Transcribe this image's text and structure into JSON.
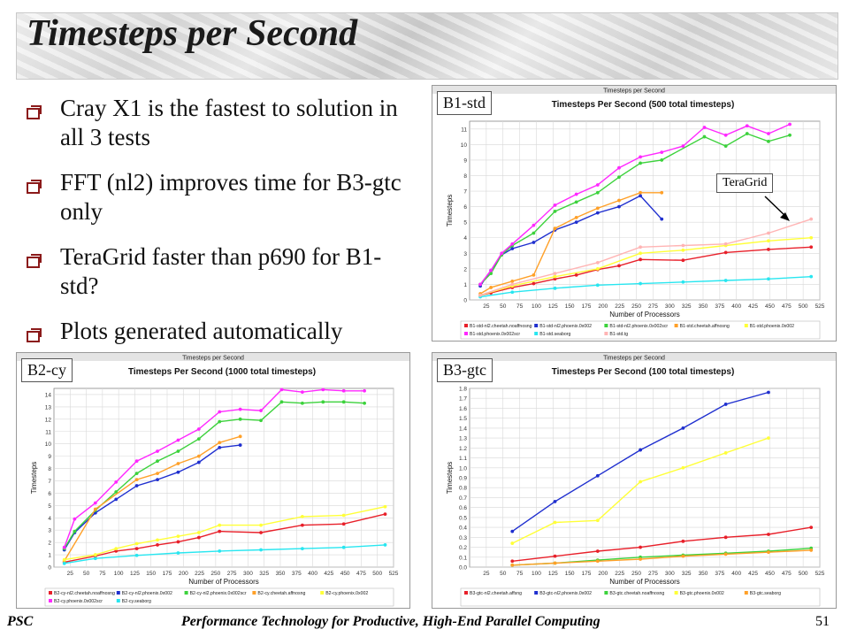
{
  "slide": {
    "title": "Timesteps per Second",
    "bullets": [
      "Cray X1 is the fastest to solution in all 3 tests",
      "FFT (nl2) improves time for B3-gtc only",
      "TeraGrid faster than p690  for B1-std?",
      "Plots generated automatically"
    ],
    "footer_left": "PSC",
    "footer_center": "Performance Technology for Productive, High-End Parallel Computing",
    "footer_right": "51",
    "annotation": "TeraGrid"
  },
  "chart_data": [
    {
      "tag": "B1-std",
      "type": "line",
      "window_title": "Timesteps per Second",
      "title": "Timesteps Per Second (500 total timesteps)",
      "xlabel": "Number of Processors",
      "ylabel": "Timesteps",
      "xlim": [
        0,
        525
      ],
      "ylim": [
        0,
        11.5
      ],
      "xticks": [
        25,
        50,
        75,
        100,
        125,
        150,
        175,
        200,
        225,
        250,
        275,
        300,
        325,
        350,
        375,
        400,
        425,
        450,
        475,
        500,
        525
      ],
      "yticks": [
        0,
        1,
        2,
        3,
        4,
        5,
        6,
        7,
        8,
        9,
        10,
        11
      ],
      "grid": true,
      "legend": "bottom",
      "series": [
        {
          "name": "B1-std-nl2.cheetah.noaffnosng",
          "color": "#e8202a",
          "x": [
            16,
            32,
            64,
            96,
            128,
            160,
            192,
            224,
            256,
            320,
            384,
            448,
            512
          ],
          "y": [
            0.3,
            0.45,
            0.8,
            1.05,
            1.35,
            1.6,
            1.95,
            2.2,
            2.6,
            2.55,
            3.05,
            3.25,
            3.4
          ]
        },
        {
          "name": "B1-std-nl2.phoenix.0x002",
          "color": "#1f2fcf",
          "x": [
            16,
            32,
            48,
            64,
            96,
            128,
            160,
            192,
            224,
            256,
            288
          ],
          "y": [
            0.9,
            1.9,
            2.9,
            3.3,
            3.7,
            4.5,
            5.0,
            5.6,
            6.0,
            6.7,
            5.2
          ]
        },
        {
          "name": "B1-std-nl2.phoenix.0x002scr",
          "color": "#3cd23c",
          "x": [
            16,
            32,
            48,
            64,
            96,
            128,
            160,
            192,
            224,
            256,
            288,
            352,
            384,
            416,
            448,
            480
          ],
          "y": [
            1.0,
            1.7,
            2.9,
            3.5,
            4.3,
            5.7,
            6.3,
            6.9,
            7.9,
            8.8,
            9.0,
            10.5,
            9.9,
            10.7,
            10.2,
            10.6
          ]
        },
        {
          "name": "B1-std.cheetah.affnosng",
          "color": "#ffa028",
          "x": [
            16,
            32,
            64,
            96,
            128,
            160,
            192,
            224,
            256,
            288
          ],
          "y": [
            0.4,
            0.8,
            1.2,
            1.6,
            4.6,
            5.3,
            5.9,
            6.4,
            6.9,
            6.9
          ]
        },
        {
          "name": "B1-std.phoenix.0x002",
          "color": "#ffff38",
          "x": [
            16,
            64,
            128,
            192,
            256,
            320,
            384,
            448,
            512
          ],
          "y": [
            0.3,
            0.9,
            1.5,
            2.0,
            3.0,
            3.2,
            3.5,
            3.8,
            4.0
          ]
        },
        {
          "name": "B1-std.phoenix.0x002scr",
          "color": "#ff28ff",
          "x": [
            16,
            32,
            48,
            64,
            96,
            128,
            160,
            192,
            224,
            256,
            288,
            320,
            352,
            384,
            416,
            448,
            480
          ],
          "y": [
            1.0,
            1.9,
            3.0,
            3.6,
            4.8,
            6.1,
            6.8,
            7.4,
            8.5,
            9.2,
            9.5,
            9.9,
            11.1,
            10.6,
            11.2,
            10.7,
            11.3
          ]
        },
        {
          "name": "B1-std.seaborg",
          "color": "#28e6f0",
          "x": [
            16,
            64,
            128,
            192,
            256,
            320,
            384,
            448,
            512
          ],
          "y": [
            0.2,
            0.5,
            0.75,
            0.95,
            1.05,
            1.15,
            1.25,
            1.35,
            1.5
          ]
        },
        {
          "name": "B1-std.tg",
          "color": "#ffb4b4",
          "x": [
            16,
            64,
            128,
            192,
            256,
            320,
            384,
            448,
            512
          ],
          "y": [
            0.3,
            1.0,
            1.7,
            2.4,
            3.4,
            3.5,
            3.6,
            4.3,
            5.2
          ]
        }
      ]
    },
    {
      "tag": "B2-cy",
      "type": "line",
      "window_title": "Timesteps per Second",
      "title": "Timesteps Per Second (1000 total timesteps)",
      "xlabel": "Number of Processors",
      "ylabel": "Timesteps",
      "xlim": [
        0,
        525
      ],
      "ylim": [
        0,
        14.5
      ],
      "xticks": [
        25,
        50,
        75,
        100,
        125,
        150,
        175,
        200,
        225,
        250,
        275,
        300,
        325,
        350,
        375,
        400,
        425,
        450,
        475,
        500,
        525
      ],
      "yticks": [
        0,
        1,
        2,
        3,
        4,
        5,
        6,
        7,
        8,
        9,
        10,
        11,
        12,
        13,
        14
      ],
      "grid": true,
      "legend": "bottom",
      "series": [
        {
          "name": "B2-cy-nl2.cheetah.noaffnosng",
          "color": "#e8202a",
          "x": [
            16,
            64,
            96,
            128,
            160,
            192,
            224,
            256,
            320,
            384,
            448,
            512
          ],
          "y": [
            0.4,
            0.9,
            1.3,
            1.5,
            1.8,
            2.05,
            2.4,
            2.9,
            2.8,
            3.4,
            3.5,
            4.3
          ]
        },
        {
          "name": "B2-cy-nl2.phoenix.0x002",
          "color": "#1f2fcf",
          "x": [
            16,
            32,
            64,
            96,
            128,
            160,
            192,
            224,
            256,
            288
          ],
          "y": [
            1.4,
            2.8,
            4.4,
            5.5,
            6.6,
            7.1,
            7.7,
            8.5,
            9.7,
            9.9
          ]
        },
        {
          "name": "B2-cy-nl2.phoenix.0x002scr",
          "color": "#3cd23c",
          "x": [
            16,
            32,
            64,
            96,
            128,
            160,
            192,
            224,
            256,
            288,
            320,
            352,
            384,
            416,
            448,
            480
          ],
          "y": [
            1.5,
            2.9,
            4.6,
            6.1,
            7.6,
            8.6,
            9.4,
            10.4,
            11.8,
            12.0,
            11.9,
            13.4,
            13.3,
            13.4,
            13.4,
            13.3
          ]
        },
        {
          "name": "B2-cy.cheetah.affnosng",
          "color": "#ffa028",
          "x": [
            16,
            64,
            128,
            160,
            192,
            224,
            256,
            288
          ],
          "y": [
            0.5,
            4.7,
            7.1,
            7.6,
            8.4,
            9.0,
            10.1,
            10.6
          ]
        },
        {
          "name": "B2-cy.phoenix.0x002",
          "color": "#ffff38",
          "x": [
            16,
            64,
            96,
            128,
            160,
            192,
            224,
            256,
            320,
            384,
            448,
            512
          ],
          "y": [
            0.6,
            1.0,
            1.5,
            1.9,
            2.2,
            2.5,
            2.8,
            3.4,
            3.4,
            4.1,
            4.2,
            4.9
          ]
        },
        {
          "name": "B2-cy.phoenix.0x002scr",
          "color": "#ff28ff",
          "x": [
            16,
            32,
            64,
            96,
            128,
            160,
            192,
            224,
            256,
            288,
            320,
            352,
            384,
            416,
            448,
            480
          ],
          "y": [
            1.6,
            3.9,
            5.2,
            6.9,
            8.6,
            9.4,
            10.3,
            11.2,
            12.6,
            12.8,
            12.7,
            14.4,
            14.2,
            14.4,
            14.3,
            14.3
          ]
        },
        {
          "name": "B2-cy.seaborg",
          "color": "#28e6f0",
          "x": [
            16,
            64,
            128,
            192,
            256,
            320,
            384,
            448,
            512
          ],
          "y": [
            0.3,
            0.7,
            0.95,
            1.15,
            1.3,
            1.4,
            1.5,
            1.6,
            1.8
          ]
        }
      ]
    },
    {
      "tag": "B3-gtc",
      "type": "line",
      "window_title": "Timesteps per Second",
      "title": "Timesteps Per Second (100 total timesteps)",
      "xlabel": "Number of Processors",
      "ylabel": "Timesteps",
      "xlim": [
        0,
        525
      ],
      "ylim": [
        0,
        1.8
      ],
      "xticks": [
        25,
        50,
        75,
        100,
        125,
        150,
        175,
        200,
        225,
        250,
        275,
        300,
        325,
        350,
        375,
        400,
        425,
        450,
        475,
        500,
        525
      ],
      "yticks": [
        0.0,
        0.1,
        0.2,
        0.3,
        0.4,
        0.5,
        0.6,
        0.7,
        0.8,
        0.9,
        1.0,
        1.1,
        1.2,
        1.3,
        1.4,
        1.5,
        1.6,
        1.7,
        1.8
      ],
      "grid": true,
      "legend": "bottom",
      "series": [
        {
          "name": "B3-gtc-nl2.cheetah.affsng",
          "color": "#e8202a",
          "x": [
            64,
            128,
            192,
            256,
            320,
            384,
            448,
            512
          ],
          "y": [
            0.06,
            0.11,
            0.16,
            0.2,
            0.26,
            0.3,
            0.33,
            0.4
          ]
        },
        {
          "name": "B3-gtc-nl2.phoenix.0x002",
          "color": "#1f2fcf",
          "x": [
            64,
            128,
            192,
            256,
            320,
            384,
            448
          ],
          "y": [
            0.36,
            0.66,
            0.92,
            1.18,
            1.4,
            1.64,
            1.76
          ]
        },
        {
          "name": "B3-gtc.cheetah.noaffnosng",
          "color": "#3cd23c",
          "x": [
            64,
            128,
            192,
            256,
            320,
            384,
            448,
            512
          ],
          "y": [
            0.02,
            0.04,
            0.07,
            0.1,
            0.12,
            0.14,
            0.16,
            0.19
          ]
        },
        {
          "name": "B3-gtc.phoenix.0x002",
          "color": "#ffff38",
          "x": [
            64,
            128,
            192,
            256,
            320,
            384,
            448
          ],
          "y": [
            0.24,
            0.45,
            0.47,
            0.86,
            1.0,
            1.15,
            1.3
          ]
        },
        {
          "name": "B3-gtc.seaborg",
          "color": "#ffa028",
          "x": [
            64,
            128,
            192,
            256,
            320,
            384,
            448,
            512
          ],
          "y": [
            0.02,
            0.04,
            0.06,
            0.08,
            0.11,
            0.13,
            0.15,
            0.17
          ]
        }
      ]
    }
  ]
}
